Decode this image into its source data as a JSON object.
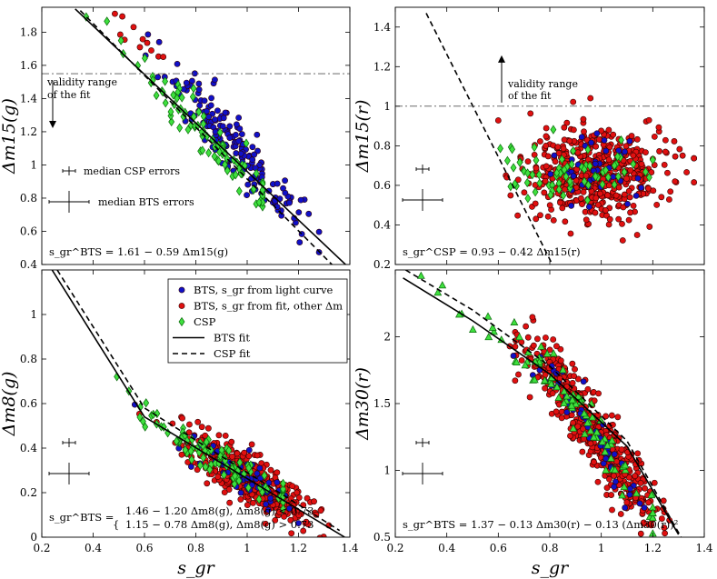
{
  "colors": {
    "bts_light": "#1010c8",
    "bts_fit": "#e01010",
    "csp": "#3ee03e"
  },
  "legend": {
    "items": [
      {
        "label": "BTS, s_gr from light curve",
        "kind": "bts_light"
      },
      {
        "label": "BTS, s_gr from fit, other Δm",
        "kind": "bts_fit"
      },
      {
        "label": "CSP",
        "kind": "csp"
      },
      {
        "label": "BTS fit",
        "kind": "solid"
      },
      {
        "label": "CSP fit",
        "kind": "dashed"
      }
    ]
  },
  "chart_data": [
    {
      "type": "scatter",
      "id": "dm15g",
      "xlabel": "",
      "ylabel": "Δm15(g)",
      "xlim": [
        0.2,
        1.4
      ],
      "ylim": [
        0.4,
        1.95
      ],
      "xticks": [
        0.2,
        0.4,
        0.6,
        0.8,
        1,
        1.2,
        1.4
      ],
      "yticks": [
        0.4,
        0.6,
        0.8,
        1,
        1.2,
        1.4,
        1.6,
        1.8
      ],
      "validity_line": 1.55,
      "validity_text": [
        "validity range",
        "of the fit"
      ],
      "validity_arrow": "down",
      "formula": "s_gr^BTS = 1.61 − 0.59 Δm15(g)",
      "errors": [
        {
          "label": "median CSP errors"
        },
        {
          "label": "median BTS errors"
        }
      ],
      "bts_fit_line": {
        "x": [
          0.33,
          1.39
        ],
        "y": [
          1.94,
          0.39
        ]
      },
      "csp_fit_line": {
        "x": [
          0.35,
          1.33
        ],
        "y": [
          1.93,
          0.4
        ]
      },
      "series": [
        {
          "name": "BTS, s_gr from light curve",
          "seed": 11,
          "center_x": 0.95,
          "spread_x": 0.12,
          "n": 180,
          "x_range": [
            0.45,
            1.28
          ],
          "y_of": [
            1.61,
            0.59
          ],
          "scatter": 0.09,
          "kind": "bts_light"
        },
        {
          "name": "BTS, s_gr from fit, other Δm",
          "seed": 12,
          "center_x": 0.52,
          "spread_x": 0.14,
          "n": 12,
          "x_range": [
            0.38,
            0.86
          ],
          "y_of": [
            1.61,
            0.59
          ],
          "scatter": 0.06,
          "kind": "bts_fit"
        },
        {
          "name": "CSP",
          "seed": 13,
          "center_x": 0.82,
          "spread_x": 0.2,
          "n": 95,
          "x_range": [
            0.3,
            1.06
          ],
          "y_of": [
            1.59,
            0.64
          ],
          "scatter": 0.06,
          "kind": "csp"
        }
      ]
    },
    {
      "type": "scatter",
      "id": "dm15r",
      "xlabel": "",
      "ylabel": "Δm15(r)",
      "xlim": [
        0.2,
        1.4
      ],
      "ylim": [
        0.2,
        1.5
      ],
      "xticks": [
        0.2,
        0.4,
        0.6,
        0.8,
        1,
        1.2,
        1.4
      ],
      "yticks": [
        0.2,
        0.4,
        0.6,
        0.8,
        1,
        1.2,
        1.4
      ],
      "validity_line": 1.0,
      "validity_text": [
        "validity range",
        "of the fit"
      ],
      "validity_arrow": "up",
      "formula": "s_gr^CSP = 0.93 − 0.42 Δm15(r)",
      "errors": [
        {
          "label": ""
        },
        {
          "label": ""
        }
      ],
      "bts_fit_line": null,
      "csp_fit_line": {
        "x": [
          0.32,
          0.81
        ],
        "y": [
          1.47,
          0.2
        ]
      },
      "series": [
        {
          "name": "BTS, s_gr from fit, other Δm",
          "seed": 21,
          "center_x": 0.98,
          "spread_x": 0.14,
          "n": 520,
          "x_range": [
            0.56,
            1.36
          ],
          "flat_y": 0.66,
          "scatter": 0.11,
          "kind": "bts_fit"
        },
        {
          "name": "BTS, s_gr from light curve",
          "seed": 22,
          "center_x": 0.95,
          "spread_x": 0.1,
          "n": 40,
          "x_range": [
            0.6,
            1.3
          ],
          "flat_y": 0.66,
          "scatter": 0.09,
          "kind": "bts_light"
        },
        {
          "name": "CSP",
          "seed": 23,
          "center_x": 0.9,
          "spread_x": 0.17,
          "n": 70,
          "x_range": [
            0.34,
            1.2
          ],
          "flat_y": 0.68,
          "scatter": 0.08,
          "kind": "csp"
        }
      ]
    },
    {
      "type": "scatter",
      "id": "dm8g",
      "xlabel": "s_gr",
      "ylabel": "Δm8(g)",
      "xlim": [
        0.2,
        1.4
      ],
      "ylim": [
        0.0,
        1.2
      ],
      "xticks": [
        0.2,
        0.4,
        0.6,
        0.8,
        1,
        1.2,
        1.4
      ],
      "yticks": [
        0,
        0.2,
        0.4,
        0.6,
        0.8,
        1
      ],
      "validity_line": null,
      "formula_lines": [
        "1.46 − 1.20 Δm8(g),  Δm8(g) < 0.73",
        "1.15 − 0.78 Δm8(g),  Δm8(g) > 0.73"
      ],
      "formula_prefix": "s_gr^BTS = ",
      "errors": [
        {
          "label": ""
        },
        {
          "label": ""
        }
      ],
      "bts_fit_line": {
        "x": [
          0.24,
          0.6,
          1.38
        ],
        "y": [
          1.2,
          0.54,
          0.0
        ]
      },
      "csp_fit_line": {
        "x": [
          0.26,
          0.6,
          1.36
        ],
        "y": [
          1.2,
          0.58,
          0.03
        ]
      },
      "series": [
        {
          "name": "BTS, s_gr from fit, other Δm",
          "seed": 31,
          "center_x": 1.0,
          "spread_x": 0.12,
          "n": 520,
          "x_range": [
            0.58,
            1.34
          ],
          "piece": true,
          "scatter": 0.05,
          "kind": "bts_fit"
        },
        {
          "name": "BTS, s_gr from light curve",
          "seed": 32,
          "center_x": 1.0,
          "spread_x": 0.1,
          "n": 60,
          "x_range": [
            0.36,
            1.2
          ],
          "piece": true,
          "scatter": 0.04,
          "kind": "bts_light"
        },
        {
          "name": "CSP",
          "seed": 33,
          "center_x": 0.85,
          "spread_x": 0.2,
          "n": 90,
          "x_range": [
            0.3,
            1.14
          ],
          "piece": true,
          "scatter": 0.04,
          "kind": "csp"
        }
      ]
    },
    {
      "type": "scatter",
      "id": "dm30r",
      "xlabel": "s_gr",
      "ylabel": "Δm30(r)",
      "xlim": [
        0.2,
        1.4
      ],
      "ylim": [
        0.5,
        2.5
      ],
      "xticks": [
        0.2,
        0.4,
        0.6,
        0.8,
        1,
        1.2,
        1.4
      ],
      "yticks": [
        0.5,
        1,
        1.5,
        2
      ],
      "validity_line": null,
      "formula": "s_gr^BTS = 1.37 − 0.13 Δm30(r) − 0.13 (Δm30(r))²",
      "errors": [
        {
          "label": ""
        },
        {
          "label": ""
        }
      ],
      "bts_fit_line": {
        "x": [
          0.23,
          0.5,
          0.8,
          1.1,
          1.3
        ],
        "y": [
          2.44,
          2.12,
          1.72,
          1.18,
          0.52
        ]
      },
      "csp_fit_line": {
        "x": [
          0.24,
          0.5,
          0.8,
          1.1,
          1.31
        ],
        "y": [
          2.5,
          2.2,
          1.78,
          1.22,
          0.5
        ]
      },
      "series": [
        {
          "name": "BTS, s_gr from fit, other Δm",
          "seed": 41,
          "center_x": 0.98,
          "spread_x": 0.14,
          "n": 520,
          "x_range": [
            0.4,
            1.34
          ],
          "curve": true,
          "scatter": 0.14,
          "kind": "bts_fit"
        },
        {
          "name": "BTS, s_gr from light curve",
          "seed": 42,
          "center_x": 0.95,
          "spread_x": 0.12,
          "n": 50,
          "x_range": [
            0.5,
            1.28
          ],
          "curve": true,
          "scatter": 0.1,
          "kind": "bts_light"
        },
        {
          "name": "CSP",
          "seed": 43,
          "center_x": 0.85,
          "spread_x": 0.22,
          "n": 90,
          "x_range": [
            0.3,
            1.2
          ],
          "curve": true,
          "scatter": 0.08,
          "kind": "csp"
        }
      ]
    }
  ]
}
